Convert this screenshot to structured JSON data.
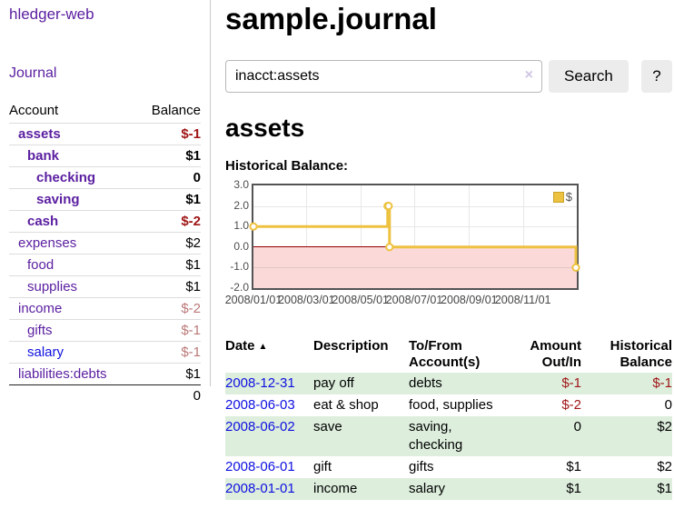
{
  "sidebar": {
    "brand": "hledger-web",
    "journal_link": "Journal",
    "accounts_table": {
      "headers": {
        "account": "Account",
        "balance": "Balance"
      },
      "rows": [
        {
          "name": "assets",
          "indent": 0,
          "bold": true,
          "balance": "$-1",
          "neg": "strong",
          "link_color": "purple"
        },
        {
          "name": "bank",
          "indent": 1,
          "bold": true,
          "balance": "$1",
          "neg": "",
          "link_color": "purple"
        },
        {
          "name": "checking",
          "indent": 2,
          "bold": true,
          "balance": "0",
          "neg": "",
          "link_color": "purple"
        },
        {
          "name": "saving",
          "indent": 2,
          "bold": true,
          "balance": "$1",
          "neg": "",
          "link_color": "purple"
        },
        {
          "name": "cash",
          "indent": 1,
          "bold": true,
          "balance": "$-2",
          "neg": "strong",
          "link_color": "purple"
        },
        {
          "name": "expenses",
          "indent": 0,
          "bold": false,
          "balance": "$2",
          "neg": "",
          "link_color": "purple"
        },
        {
          "name": "food",
          "indent": 1,
          "bold": false,
          "balance": "$1",
          "neg": "",
          "link_color": "purple"
        },
        {
          "name": "supplies",
          "indent": 1,
          "bold": false,
          "balance": "$1",
          "neg": "",
          "link_color": "purple"
        },
        {
          "name": "income",
          "indent": 0,
          "bold": false,
          "balance": "$-2",
          "neg": "soft",
          "link_color": "purple"
        },
        {
          "name": "gifts",
          "indent": 1,
          "bold": false,
          "balance": "$-1",
          "neg": "soft",
          "link_color": "purple"
        },
        {
          "name": "salary",
          "indent": 1,
          "bold": false,
          "balance": "$-1",
          "neg": "soft",
          "link_color": "blue"
        },
        {
          "name": "liabilities:debts",
          "indent": 0,
          "bold": false,
          "balance": "$1",
          "neg": "",
          "link_color": "purple"
        }
      ],
      "total": "0"
    }
  },
  "main": {
    "title": "sample.journal",
    "search": {
      "value": "inacct:assets",
      "clear_icon": "×",
      "search_label": "Search",
      "help_label": "?"
    },
    "account_heading": "assets",
    "chart_title": "Historical Balance:",
    "register_table": {
      "headers": {
        "date": "Date",
        "sort_icon": "▲",
        "description": "Description",
        "accounts": "To/From Account(s)",
        "amount": "Amount Out/In",
        "balance": "Historical Balance"
      },
      "rows": [
        {
          "date": "2008-12-31",
          "description": "pay off",
          "accounts": "debts",
          "amount": "$-1",
          "amount_neg": true,
          "balance": "$-1",
          "balance_neg": true
        },
        {
          "date": "2008-06-03",
          "description": "eat & shop",
          "accounts": "food, supplies",
          "amount": "$-2",
          "amount_neg": true,
          "balance": "0",
          "balance_neg": false
        },
        {
          "date": "2008-06-02",
          "description": "save",
          "accounts": "saving, checking",
          "amount": "0",
          "amount_neg": false,
          "balance": "$2",
          "balance_neg": false
        },
        {
          "date": "2008-06-01",
          "description": "gift",
          "accounts": "gifts",
          "amount": "$1",
          "amount_neg": false,
          "balance": "$2",
          "balance_neg": false
        },
        {
          "date": "2008-01-01",
          "description": "income",
          "accounts": "salary",
          "amount": "$1",
          "amount_neg": false,
          "balance": "$1",
          "balance_neg": false
        }
      ]
    }
  },
  "chart_data": {
    "type": "line",
    "step": true,
    "title": "Historical Balance:",
    "legend": "$",
    "legend_position": "top-right",
    "grid": true,
    "series": [
      {
        "name": "$",
        "color": "#edc240",
        "points": [
          [
            "2008-01-01",
            1
          ],
          [
            "2008-06-01",
            2
          ],
          [
            "2008-06-02",
            2
          ],
          [
            "2008-06-03",
            0
          ],
          [
            "2008-12-31",
            -1
          ]
        ]
      }
    ],
    "x_range": [
      "2008-01-01",
      "2009-01-01"
    ],
    "ylim": [
      -2,
      3
    ],
    "y_ticks": [
      3.0,
      2.0,
      1.0,
      0.0,
      -1.0,
      -2.0
    ],
    "y_tick_labels": [
      "3.0",
      "2.0",
      "1.0",
      "0.0",
      "-1.0",
      "-2.0"
    ],
    "x_tick_dates": [
      "2008-01-01",
      "2008-03-01",
      "2008-05-01",
      "2008-07-01",
      "2008-09-01",
      "2008-11-01"
    ],
    "x_tick_labels": [
      "2008/01/01",
      "2008/03/01",
      "2008/05/01",
      "2008/07/01",
      "2008/09/01",
      "2008/11/01"
    ],
    "negative_region_fill": "#fbd9d9",
    "zero_line_color": "#8f0000"
  },
  "colors": {
    "link_purple": "#5a1ea0",
    "link_blue": "#0f10e0",
    "negative_strong": "#a01616",
    "negative_soft": "#bb7878",
    "row_green": "#ddeedd",
    "chart_line_gold": "#edc240",
    "chart_negative_fill": "#fbd9d9",
    "chart_zero_line": "#8f0000"
  }
}
